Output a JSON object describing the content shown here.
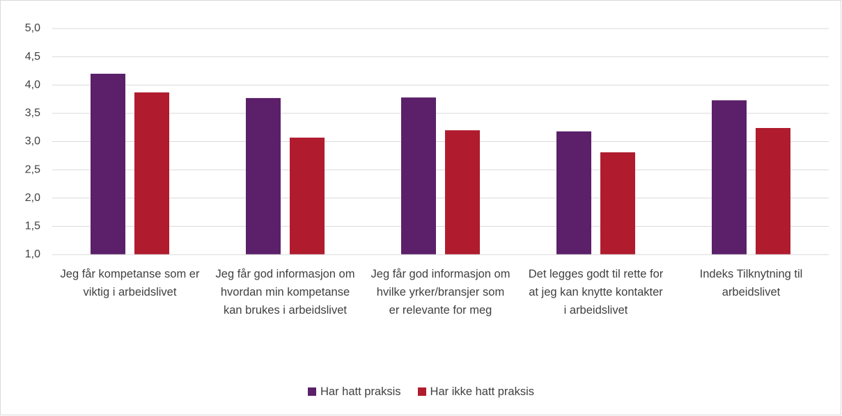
{
  "chart_data": {
    "type": "bar",
    "categories": [
      "Jeg får kompetanse som er viktig i arbeidslivet",
      "Jeg får god informasjon om hvordan min kompetanse kan brukes i arbeidslivet",
      "Jeg får god informasjon om hvilke yrker/bransjer som er relevante for meg",
      "Det legges godt til rette for at jeg kan knytte kontakter i arbeidslivet",
      "Indeks Tilknytning til arbeidslivet"
    ],
    "series": [
      {
        "name": "Har hatt praksis",
        "color": "#5b2069",
        "values": [
          4.2,
          3.77,
          3.78,
          3.18,
          3.73
        ]
      },
      {
        "name": "Har ikke hatt praksis",
        "color": "#b01c2e",
        "values": [
          3.87,
          3.07,
          3.2,
          2.81,
          3.24
        ]
      }
    ],
    "ylim": [
      1,
      5
    ],
    "yticks": [
      {
        "value": 1,
        "label": "1,0"
      },
      {
        "value": 1.5,
        "label": "1,5"
      },
      {
        "value": 2,
        "label": "2,0"
      },
      {
        "value": 2.5,
        "label": "2,5"
      },
      {
        "value": 3,
        "label": "3,0"
      },
      {
        "value": 3.5,
        "label": "3,5"
      },
      {
        "value": 4,
        "label": "4,0"
      },
      {
        "value": 4.5,
        "label": "4,5"
      },
      {
        "value": 5,
        "label": "5,0"
      }
    ],
    "grid": true,
    "legend": "bottom"
  }
}
